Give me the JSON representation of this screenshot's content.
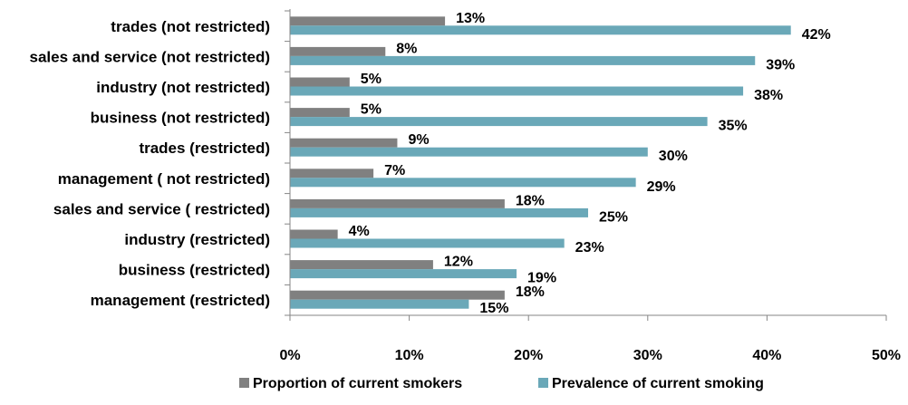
{
  "chart_data": {
    "type": "bar",
    "orientation": "horizontal",
    "categories": [
      "trades (not restricted)",
      "sales and service (not restricted)",
      "industry (not restricted)",
      "business (not restricted)",
      "trades (restricted)",
      "management ( not restricted)",
      "sales and service ( restricted)",
      "industry (restricted)",
      "business (restricted)",
      "management (restricted)"
    ],
    "series": [
      {
        "name": "Proportion of current smokers",
        "color": "#808080",
        "values": [
          13,
          8,
          5,
          5,
          9,
          7,
          18,
          4,
          12,
          18
        ],
        "labels": [
          "13%",
          "8%",
          "5%",
          "5%",
          "9%",
          "7%",
          "18%",
          "4%",
          "12%",
          "18%"
        ]
      },
      {
        "name": "Prevalence of current smoking",
        "color": "#6AA8B8",
        "values": [
          42,
          39,
          38,
          35,
          30,
          29,
          25,
          23,
          19,
          15
        ],
        "labels": [
          "42%",
          "39%",
          "38%",
          "35%",
          "30%",
          "29%",
          "25%",
          "23%",
          "19%",
          "15%"
        ]
      }
    ],
    "xlim": [
      0,
      50
    ],
    "xticks": [
      0,
      10,
      20,
      30,
      40,
      50
    ],
    "xtick_labels": [
      "0%",
      "10%",
      "20%",
      "30%",
      "40%",
      "50%"
    ],
    "grid": false,
    "legend_position": "bottom",
    "title": "",
    "xlabel": "",
    "ylabel": ""
  }
}
